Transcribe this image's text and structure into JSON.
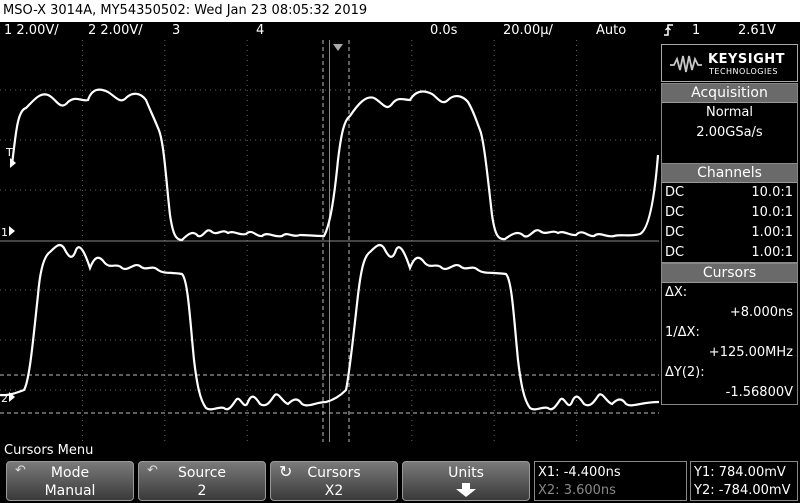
{
  "header": {
    "title": "MSO-X 3014A, MY54350502: Wed Jan 23 08:05:32 2019"
  },
  "status": {
    "ch1": "1  2.00V/",
    "ch2": "2  2.00V/",
    "ch3": "3",
    "ch4": "4",
    "delay": "0.0s",
    "timebase": "20.00µ/",
    "trigger_mode": "Auto",
    "trigger_icon": "rising-edge-icon",
    "trigger_source": "1",
    "trigger_level": "2.61V"
  },
  "screen": {
    "trigger_marker": "T",
    "ch1_marker": "1",
    "ch2_marker": "2"
  },
  "brand": {
    "name": "KEYSIGHT",
    "sub": "TECHNOLOGIES"
  },
  "acquisition": {
    "title": "Acquisition",
    "mode": "Normal",
    "rate": "2.00GSa/s"
  },
  "channels": {
    "title": "Channels",
    "rows": [
      {
        "coupling": "DC",
        "probe": "10.0:1"
      },
      {
        "coupling": "DC",
        "probe": "10.0:1"
      },
      {
        "coupling": "DC",
        "probe": "1.00:1"
      },
      {
        "coupling": "DC",
        "probe": "1.00:1"
      }
    ]
  },
  "cursors": {
    "title": "Cursors",
    "dx_label": "ΔX:",
    "dx_value": "+8.000ns",
    "inv_label": "1/ΔX:",
    "inv_value": "+125.00MHz",
    "dy_label": "ΔY(2):",
    "dy_value": "-1.56800V"
  },
  "menu": {
    "title": "Cursors Menu"
  },
  "softkeys": [
    {
      "label": "Mode",
      "value": "Manual"
    },
    {
      "label": "Source",
      "value": "2"
    },
    {
      "label": "Cursors",
      "value": "X2"
    },
    {
      "label": "Units",
      "value": ""
    }
  ],
  "readouts": {
    "x1": "X1: -4.400ns",
    "x2": "X2: 3.600ns",
    "y1": "Y1: 784.00mV",
    "y2": "Y2: -784.00mV"
  }
}
